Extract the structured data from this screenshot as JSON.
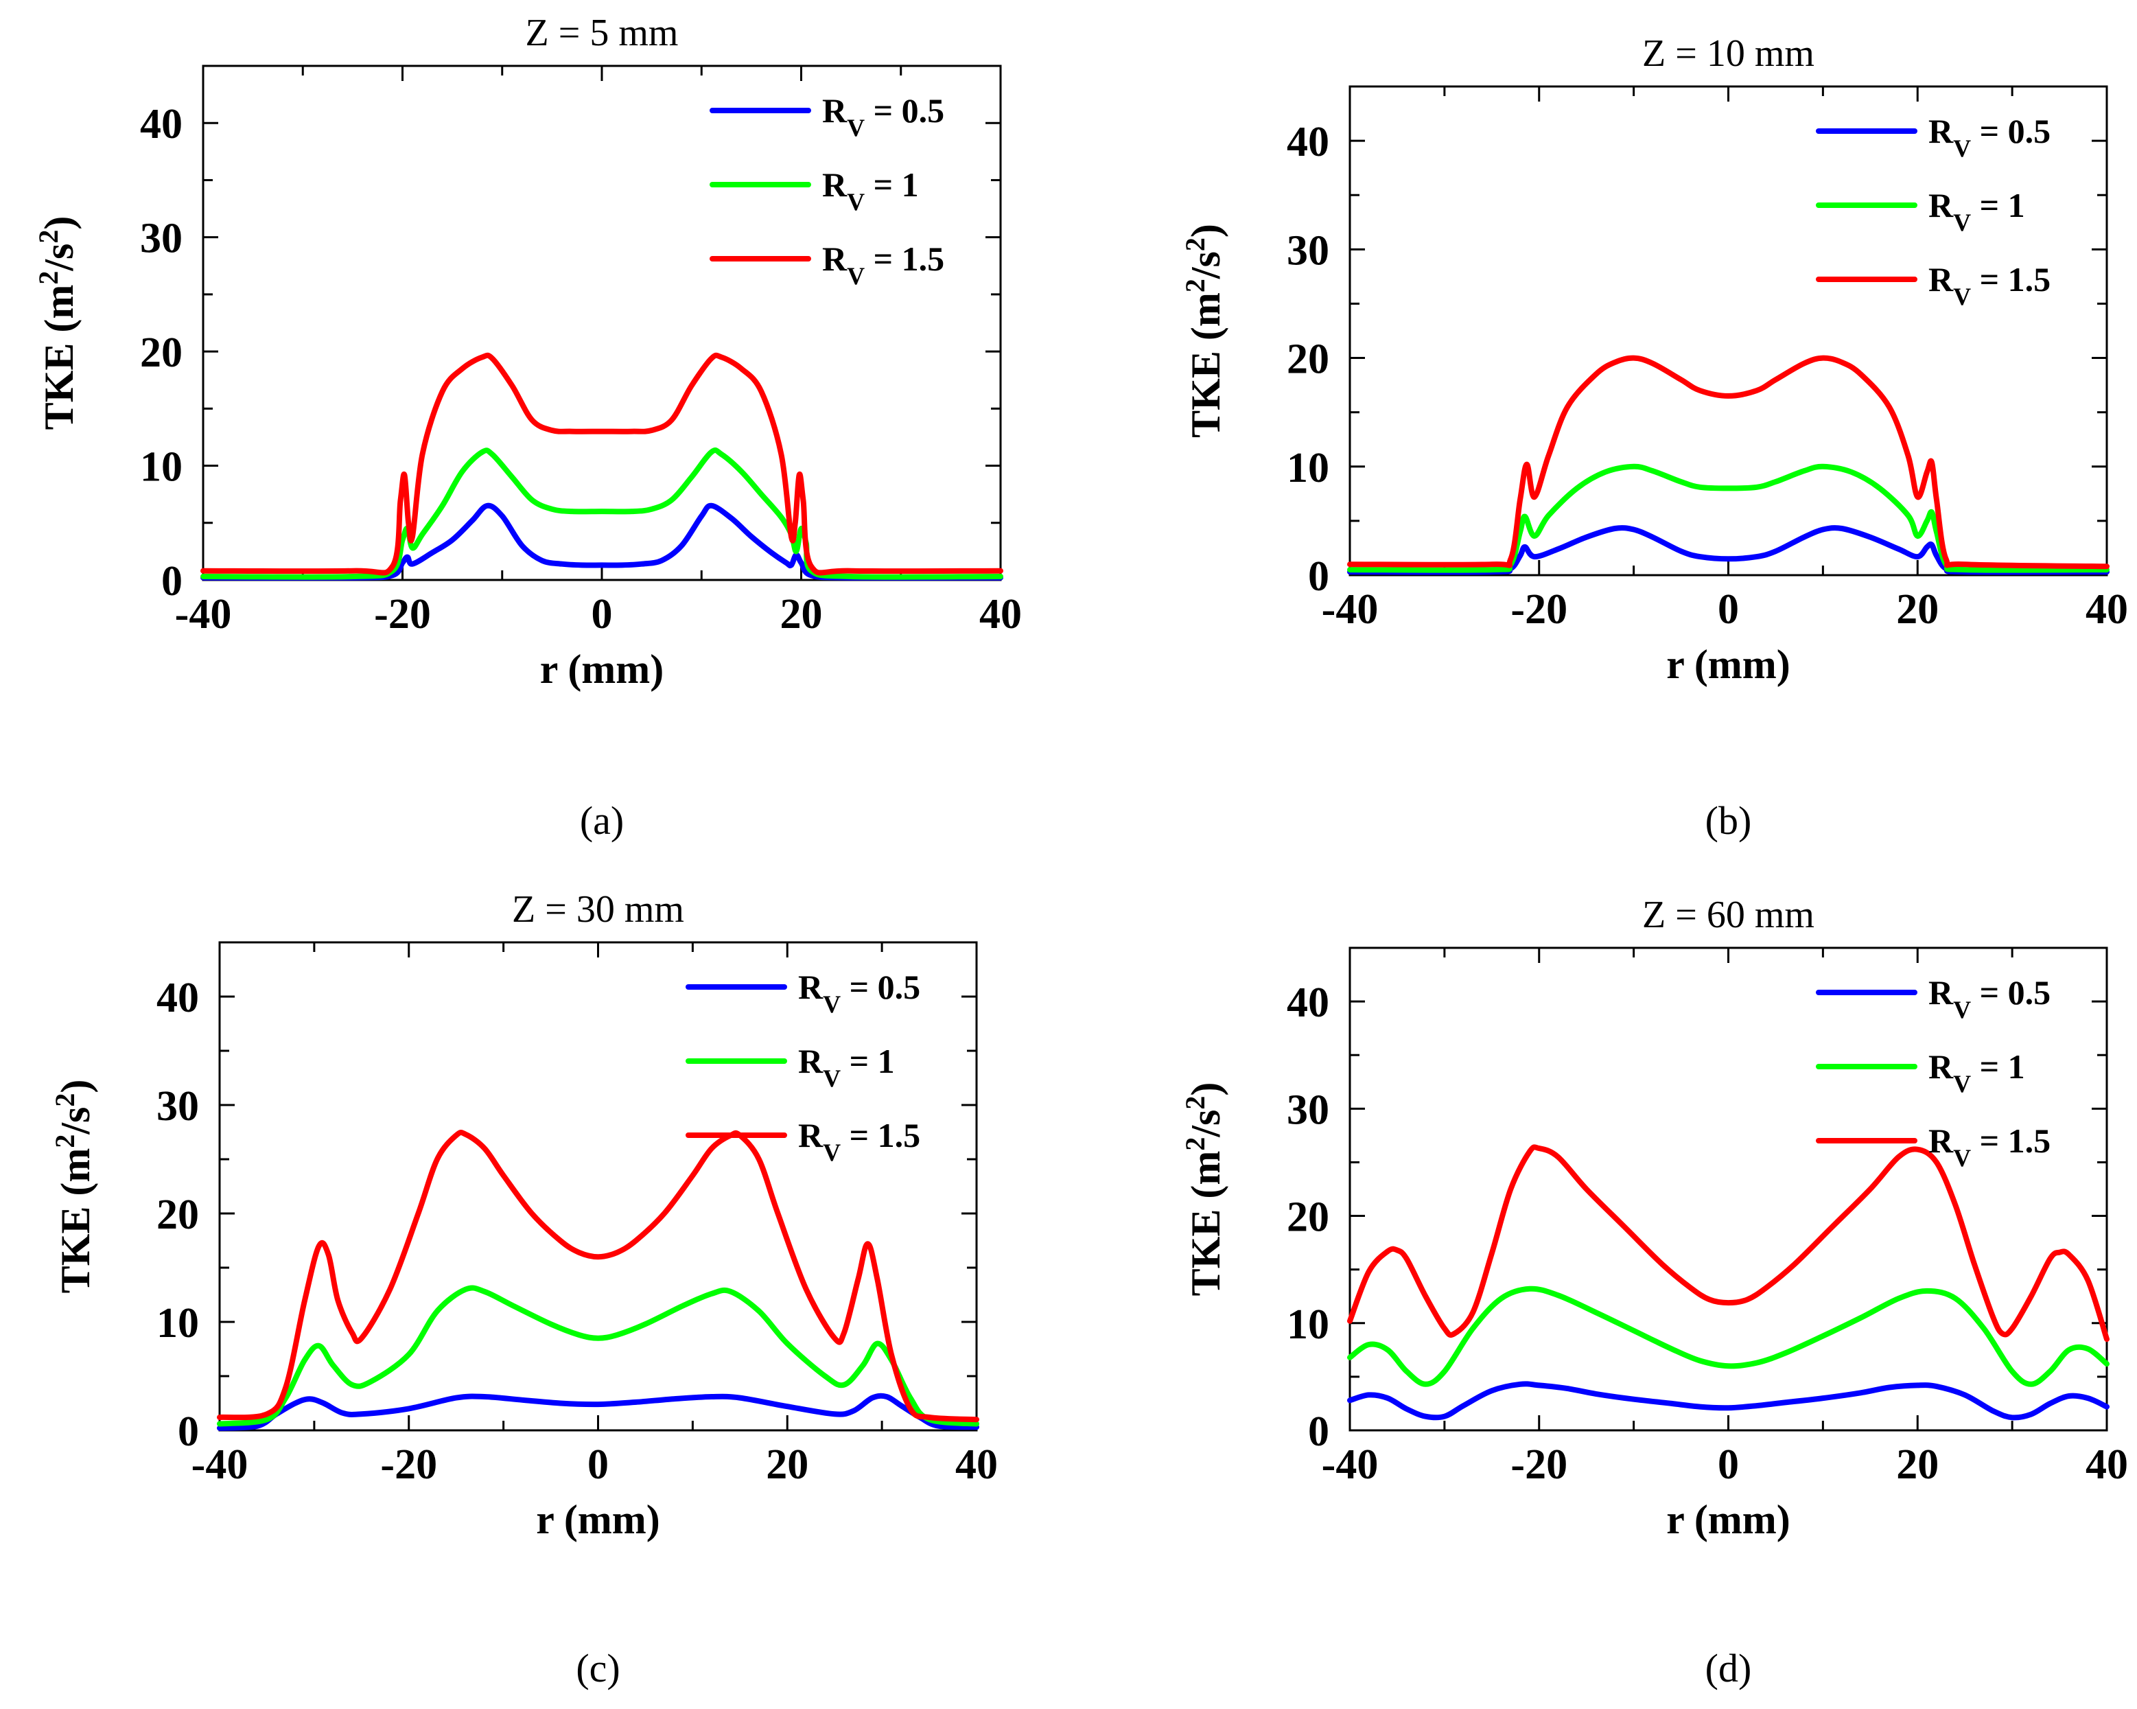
{
  "chart_data": [
    {
      "type": "line",
      "title": "Z = 5 mm",
      "panel_label": "(a)",
      "xlabel": "r (mm)",
      "ylabel": "TKE (m2/s2)",
      "ylabel_parts": {
        "base": "TKE (m",
        "exp1": "2",
        "mid": "/s",
        "exp2": "2",
        "end": ")"
      },
      "xlim": [
        -40,
        40
      ],
      "ylim": [
        0,
        45
      ],
      "xticks": [
        "-40",
        "-20",
        "0",
        "20",
        "40"
      ],
      "yticks": [
        "0",
        "10",
        "20",
        "30",
        "40"
      ],
      "legend": [
        {
          "name": "R",
          "sub": "V",
          "rest": " = 0.5",
          "color": "#0000ff"
        },
        {
          "name": "R",
          "sub": "V",
          "rest": " = 1",
          "color": "#00ff00"
        },
        {
          "name": "R",
          "sub": "V",
          "rest": " = 1.5",
          "color": "#ff0000"
        }
      ],
      "series": [
        {
          "name": "R_V = 0.5",
          "color": "#0000ff",
          "x": [
            -40,
            -25,
            -21,
            -20,
            -19.5,
            -19,
            -17,
            -15,
            -13,
            -11.5,
            -10,
            -8,
            -6,
            -4,
            -2,
            0,
            2,
            4,
            6,
            8,
            10,
            11,
            13,
            15,
            17,
            18.5,
            19,
            19.5,
            20,
            21,
            25,
            40
          ],
          "y": [
            0.2,
            0.2,
            0.4,
            1.5,
            2.0,
            1.4,
            2.4,
            3.5,
            5.2,
            6.5,
            5.6,
            3.0,
            1.7,
            1.4,
            1.3,
            1.3,
            1.3,
            1.4,
            1.7,
            3.0,
            5.6,
            6.5,
            5.4,
            3.8,
            2.4,
            1.5,
            1.3,
            2.2,
            1.5,
            0.4,
            0.2,
            0.2
          ]
        },
        {
          "name": "R_V = 1",
          "color": "#00ff00",
          "x": [
            -40,
            -25,
            -21,
            -20,
            -19.5,
            -19,
            -18,
            -16,
            -14,
            -12,
            -11,
            -9,
            -7,
            -5,
            -3,
            0,
            3,
            5,
            7,
            9,
            11,
            12,
            14,
            16,
            18,
            19,
            19.5,
            20,
            20.5,
            21,
            25,
            40
          ],
          "y": [
            0.3,
            0.3,
            0.8,
            3.5,
            4.5,
            2.8,
            4.0,
            6.5,
            9.5,
            11.2,
            11.0,
            9.0,
            7.0,
            6.2,
            6.0,
            6.0,
            6.0,
            6.2,
            7.0,
            9.0,
            11.2,
            11.0,
            9.5,
            7.5,
            5.5,
            4.0,
            2.5,
            4.5,
            3.2,
            0.8,
            0.3,
            0.3
          ]
        },
        {
          "name": "R_V = 1.5",
          "color": "#ff0000",
          "x": [
            -40,
            -25,
            -21,
            -20.2,
            -19.8,
            -19.4,
            -19,
            -18,
            -16,
            -14,
            -12,
            -11,
            -9,
            -7,
            -5,
            -3,
            0,
            3,
            5,
            7,
            9,
            11,
            12,
            14,
            16,
            18,
            19,
            19.4,
            19.8,
            20.2,
            21,
            25,
            40
          ],
          "y": [
            0.8,
            0.8,
            1.2,
            7.0,
            9.2,
            5.0,
            3.8,
            11.0,
            16.5,
            18.5,
            19.5,
            19.4,
            17.0,
            14.0,
            13.1,
            13.0,
            13.0,
            13.0,
            13.1,
            14.0,
            17.0,
            19.4,
            19.5,
            18.5,
            16.5,
            11.0,
            3.8,
            5.0,
            9.2,
            7.0,
            1.2,
            0.8,
            0.8
          ]
        }
      ]
    },
    {
      "type": "line",
      "title": "Z = 10 mm",
      "panel_label": "(b)",
      "xlabel": "r (mm)",
      "ylabel": "TKE (m2/s2)",
      "ylabel_parts": {
        "base": "TKE (m",
        "exp1": "2",
        "mid": "/s",
        "exp2": "2",
        "end": ")"
      },
      "xlim": [
        -40,
        40
      ],
      "ylim": [
        0,
        45
      ],
      "xticks": [
        "-40",
        "-20",
        "0",
        "20",
        "40"
      ],
      "yticks": [
        "0",
        "10",
        "20",
        "30",
        "40"
      ],
      "legend": [
        {
          "name": "R",
          "sub": "V",
          "rest": " = 0.5",
          "color": "#0000ff"
        },
        {
          "name": "R",
          "sub": "V",
          "rest": " = 1",
          "color": "#00ff00"
        },
        {
          "name": "R",
          "sub": "V",
          "rest": " = 1.5",
          "color": "#ff0000"
        }
      ],
      "series": [
        {
          "name": "R_V = 0.5",
          "color": "#0000ff",
          "x": [
            -40,
            -25,
            -23,
            -22,
            -21.5,
            -20.5,
            -18,
            -15,
            -12,
            -10,
            -8,
            -5,
            -3,
            0,
            3,
            5,
            8,
            10,
            12,
            15,
            18,
            20,
            21,
            21.5,
            22,
            23,
            25,
            40
          ],
          "y": [
            0.3,
            0.3,
            0.6,
            1.8,
            2.6,
            1.7,
            2.4,
            3.5,
            4.3,
            4.2,
            3.5,
            2.2,
            1.7,
            1.5,
            1.7,
            2.2,
            3.5,
            4.2,
            4.3,
            3.5,
            2.4,
            1.7,
            2.6,
            2.8,
            1.8,
            0.6,
            0.3,
            0.3
          ]
        },
        {
          "name": "R_V = 1",
          "color": "#00ff00",
          "x": [
            -40,
            -25,
            -23,
            -22,
            -21.5,
            -20.5,
            -19,
            -16,
            -13,
            -10,
            -8,
            -5,
            -3,
            0,
            3,
            5,
            8,
            10,
            13,
            16,
            19,
            20,
            21,
            21.5,
            22,
            23,
            25,
            40
          ],
          "y": [
            0.5,
            0.5,
            1.0,
            4.0,
            5.4,
            3.6,
            5.5,
            8.0,
            9.5,
            10.0,
            9.6,
            8.6,
            8.1,
            8.0,
            8.1,
            8.6,
            9.6,
            10.0,
            9.5,
            8.0,
            5.5,
            3.6,
            5.0,
            5.8,
            4.0,
            1.0,
            0.5,
            0.5
          ]
        },
        {
          "name": "R_V = 1.5",
          "color": "#ff0000",
          "x": [
            -40,
            -25,
            -23,
            -22,
            -21.3,
            -20.5,
            -19,
            -17,
            -14,
            -12,
            -10,
            -8,
            -5,
            -3,
            0,
            3,
            5,
            8,
            10,
            12,
            14,
            17,
            19,
            20,
            21,
            21.5,
            22,
            23,
            25,
            40
          ],
          "y": [
            1.0,
            1.0,
            1.5,
            7.0,
            10.2,
            7.2,
            11.0,
            15.5,
            18.5,
            19.6,
            20.0,
            19.5,
            18.0,
            17.0,
            16.5,
            17.0,
            18.0,
            19.5,
            20.0,
            19.6,
            18.5,
            15.5,
            11.0,
            7.2,
            9.5,
            10.4,
            7.0,
            1.5,
            1.0,
            0.8
          ]
        }
      ]
    },
    {
      "type": "line",
      "title": "Z = 30 mm",
      "panel_label": "(c)",
      "xlabel": "r (mm)",
      "ylabel": "TKE (m2/s2)",
      "ylabel_parts": {
        "base": "TKE (m",
        "exp1": "2",
        "mid": "/s",
        "exp2": "2",
        "end": ")"
      },
      "xlim": [
        -40,
        40
      ],
      "ylim": [
        0,
        45
      ],
      "xticks": [
        "-40",
        "-20",
        "0",
        "20",
        "40"
      ],
      "yticks": [
        "0",
        "10",
        "20",
        "30",
        "40"
      ],
      "legend": [
        {
          "name": "R",
          "sub": "V",
          "rest": " = 0.5",
          "color": "#0000ff"
        },
        {
          "name": "R",
          "sub": "V",
          "rest": " = 1",
          "color": "#00ff00"
        },
        {
          "name": "R",
          "sub": "V",
          "rest": " = 1.5",
          "color": "#ff0000"
        }
      ],
      "series": [
        {
          "name": "R_V = 0.5",
          "color": "#0000ff",
          "x": [
            -40,
            -36,
            -34,
            -32,
            -30.5,
            -29,
            -27,
            -25,
            -20,
            -15,
            -12,
            -8,
            -4,
            0,
            4,
            8,
            12,
            15,
            20,
            25,
            27,
            29,
            30.5,
            32,
            34,
            36,
            40
          ],
          "y": [
            0.2,
            0.4,
            1.5,
            2.5,
            2.9,
            2.5,
            1.6,
            1.5,
            2.0,
            3.0,
            3.1,
            2.8,
            2.5,
            2.4,
            2.6,
            2.9,
            3.1,
            3.0,
            2.2,
            1.5,
            1.8,
            3.0,
            3.1,
            2.3,
            1.2,
            0.4,
            0.3
          ]
        },
        {
          "name": "R_V = 1",
          "color": "#00ff00",
          "x": [
            -40,
            -35,
            -33,
            -31,
            -29.5,
            -28,
            -26,
            -24,
            -20,
            -17,
            -14,
            -12,
            -9,
            -5,
            -2,
            0,
            2,
            5,
            9,
            12,
            14,
            17,
            20,
            24,
            26,
            28,
            29.5,
            31,
            33,
            35,
            40
          ],
          "y": [
            0.6,
            1.0,
            3.0,
            6.5,
            7.8,
            6.0,
            4.2,
            4.5,
            7.0,
            11.0,
            13.0,
            12.8,
            11.5,
            9.8,
            8.8,
            8.5,
            8.8,
            9.8,
            11.5,
            12.6,
            12.8,
            11.0,
            8.0,
            5.0,
            4.2,
            6.0,
            8.0,
            6.5,
            3.0,
            1.0,
            0.6
          ]
        },
        {
          "name": "R_V = 1.5",
          "color": "#ff0000",
          "x": [
            -40,
            -35,
            -33,
            -31,
            -29.5,
            -28.5,
            -27.5,
            -26,
            -25,
            -22,
            -19,
            -17,
            -15,
            -14,
            -12,
            -10,
            -7,
            -4,
            -2,
            0,
            2,
            4,
            7,
            10,
            12,
            14,
            15,
            17,
            19,
            22,
            25,
            26,
            27.5,
            28.5,
            29.5,
            31,
            33,
            35,
            40
          ],
          "y": [
            1.2,
            1.5,
            4.0,
            12.0,
            17.0,
            16.2,
            12.0,
            9.0,
            8.5,
            13.0,
            20.0,
            25.0,
            27.2,
            27.3,
            26.0,
            23.5,
            20.0,
            17.5,
            16.4,
            16.0,
            16.4,
            17.5,
            20.0,
            23.5,
            26.0,
            27.2,
            27.2,
            25.0,
            20.0,
            13.0,
            8.5,
            9.0,
            14.0,
            17.2,
            14.0,
            7.0,
            2.0,
            1.2,
            1.0
          ]
        }
      ]
    },
    {
      "type": "line",
      "title": "Z = 60 mm",
      "panel_label": "(d)",
      "xlabel": "r (mm)",
      "ylabel": "TKE (m2/s2)",
      "ylabel_parts": {
        "base": "TKE (m",
        "exp1": "2",
        "mid": "/s",
        "exp2": "2",
        "end": ")"
      },
      "xlim": [
        -40,
        40
      ],
      "ylim": [
        0,
        45
      ],
      "xticks": [
        "-40",
        "-20",
        "0",
        "20",
        "40"
      ],
      "yticks": [
        "0",
        "10",
        "20",
        "30",
        "40"
      ],
      "legend": [
        {
          "name": "R",
          "sub": "V",
          "rest": " = 0.5",
          "color": "#0000ff"
        },
        {
          "name": "R",
          "sub": "V",
          "rest": " = 1",
          "color": "#00ff00"
        },
        {
          "name": "R",
          "sub": "V",
          "rest": " = 1.5",
          "color": "#ff0000"
        }
      ],
      "series": [
        {
          "name": "R_V = 0.5",
          "color": "#0000ff",
          "x": [
            -40,
            -38,
            -36,
            -34,
            -32,
            -30,
            -28,
            -25,
            -22,
            -20,
            -17,
            -14,
            -10,
            -6,
            -3,
            0,
            3,
            6,
            10,
            14,
            17,
            20,
            22,
            25,
            28,
            30,
            32,
            34,
            36,
            38,
            40
          ],
          "y": [
            2.8,
            3.3,
            3.0,
            2.0,
            1.3,
            1.3,
            2.3,
            3.7,
            4.3,
            4.2,
            3.9,
            3.4,
            2.9,
            2.5,
            2.2,
            2.1,
            2.3,
            2.6,
            3.0,
            3.5,
            4.0,
            4.2,
            4.1,
            3.3,
            1.8,
            1.2,
            1.5,
            2.5,
            3.2,
            3.0,
            2.2
          ]
        },
        {
          "name": "R_V = 1",
          "color": "#00ff00",
          "x": [
            -40,
            -38,
            -36,
            -34,
            -32,
            -30,
            -27,
            -24,
            -21,
            -18,
            -14,
            -10,
            -6,
            -3,
            0,
            3,
            6,
            10,
            14,
            18,
            21,
            24,
            27,
            30,
            32,
            34,
            36,
            38,
            40
          ],
          "y": [
            6.8,
            8.0,
            7.5,
            5.5,
            4.3,
            5.5,
            9.5,
            12.3,
            13.2,
            12.6,
            11.0,
            9.3,
            7.6,
            6.5,
            6.0,
            6.3,
            7.2,
            8.8,
            10.5,
            12.3,
            13.0,
            12.3,
            9.5,
            5.5,
            4.3,
            5.5,
            7.5,
            7.6,
            6.2
          ]
        },
        {
          "name": "R_V = 1.5",
          "color": "#ff0000",
          "x": [
            -40,
            -38,
            -36,
            -35,
            -34,
            -32,
            -30,
            -29,
            -27,
            -25,
            -23,
            -21,
            -20,
            -18,
            -15,
            -11,
            -7,
            -4,
            -2,
            0,
            2,
            4,
            7,
            11,
            15,
            18,
            20,
            22,
            24,
            26,
            28,
            29,
            30,
            32,
            34,
            35,
            36,
            38,
            40
          ],
          "y": [
            10.2,
            14.8,
            16.7,
            16.8,
            16.0,
            12.5,
            9.5,
            9.0,
            11.0,
            16.5,
            22.5,
            26.0,
            26.3,
            25.5,
            22.5,
            19.0,
            15.5,
            13.3,
            12.2,
            11.9,
            12.2,
            13.3,
            15.5,
            19.0,
            22.5,
            25.5,
            26.2,
            25.0,
            21.0,
            15.5,
            10.5,
            9.0,
            9.5,
            12.5,
            16.0,
            16.6,
            16.4,
            14.0,
            8.5
          ]
        }
      ]
    }
  ]
}
